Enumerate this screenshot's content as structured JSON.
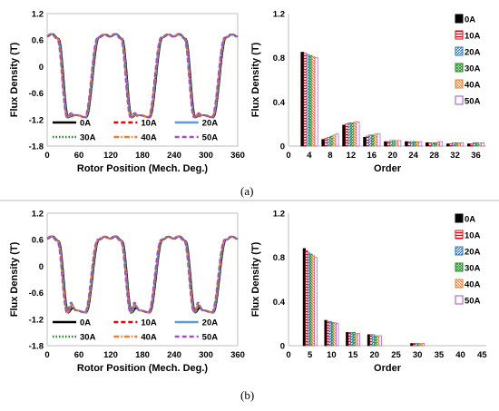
{
  "captions": {
    "a": "(a)",
    "b": "(b)"
  },
  "chart_data": [
    {
      "panel": "a",
      "type": "line",
      "xlabel": "Rotor Position (Mech. Deg.)",
      "ylabel": "Flux Density (T)",
      "xlim": [
        0,
        360
      ],
      "ylim": [
        -1.8,
        1.2
      ],
      "xticks": [
        "0",
        "60",
        "120",
        "180",
        "240",
        "300",
        "360"
      ],
      "yticks": [
        "-1.8",
        "-1.2",
        "-0.6",
        "0",
        "0.6",
        "1.2"
      ],
      "series": [
        {
          "name": "0A",
          "color": "#000000",
          "dash": "solid"
        },
        {
          "name": "10A",
          "color": "#e8000b",
          "dash": "dash"
        },
        {
          "name": "20A",
          "color": "#5b9bd5",
          "dash": "solid"
        },
        {
          "name": "30A",
          "color": "#1f8a1f",
          "dash": "dot"
        },
        {
          "name": "40A",
          "color": "#ed7d31",
          "dash": "dashdot"
        },
        {
          "name": "50A",
          "color": "#a64ec8",
          "dash": "dash"
        }
      ],
      "waveform": {
        "period_deg": 120,
        "phase_deg": 0,
        "plateau_high": 0.68,
        "valley_low": -1.15,
        "dip_values": {
          "0A": -1.1,
          "10A": -1.12,
          "20A": -1.1,
          "30A": -1.08,
          "40A": -1.06,
          "50A": -1.05
        }
      },
      "legend_position": "bottom"
    },
    {
      "panel": "a",
      "type": "bar",
      "xlabel": "Order",
      "ylabel": "Flux Density (T)",
      "xlim": [
        0,
        38
      ],
      "ylim": [
        0,
        1.2
      ],
      "xticks": [
        "0",
        "4",
        "8",
        "12",
        "16",
        "20",
        "24",
        "28",
        "32",
        "36"
      ],
      "yticks": [
        "0",
        "0.4",
        "0.8",
        "1.2"
      ],
      "orders": [
        4,
        8,
        12,
        16,
        20,
        24,
        28,
        32,
        36
      ],
      "series": [
        {
          "name": "0A",
          "color": "#000000",
          "pattern": "solid",
          "values": [
            0.85,
            0.06,
            0.19,
            0.08,
            0.04,
            0.04,
            0.03,
            0.02,
            0.02
          ]
        },
        {
          "name": "10A",
          "color": "#e8000b",
          "pattern": "hlines",
          "values": [
            0.84,
            0.07,
            0.2,
            0.09,
            0.04,
            0.04,
            0.03,
            0.02,
            0.02
          ]
        },
        {
          "name": "20A",
          "color": "#2e75b6",
          "pattern": "diag",
          "values": [
            0.83,
            0.08,
            0.21,
            0.1,
            0.05,
            0.04,
            0.03,
            0.03,
            0.03
          ]
        },
        {
          "name": "30A",
          "color": "#1f8a1f",
          "pattern": "cross",
          "values": [
            0.82,
            0.09,
            0.21,
            0.1,
            0.05,
            0.04,
            0.03,
            0.03,
            0.03
          ]
        },
        {
          "name": "40A",
          "color": "#ed7d31",
          "pattern": "diag2",
          "values": [
            0.81,
            0.1,
            0.22,
            0.11,
            0.05,
            0.04,
            0.04,
            0.03,
            0.03
          ]
        },
        {
          "name": "50A",
          "color": "#a64ec8",
          "pattern": "outline",
          "values": [
            0.8,
            0.11,
            0.22,
            0.11,
            0.05,
            0.04,
            0.04,
            0.03,
            0.03
          ]
        }
      ],
      "legend_position": "right"
    },
    {
      "panel": "b",
      "type": "line",
      "xlabel": "Rotor Position (Mech. Deg.)",
      "ylabel": "Flux Density (T)",
      "xlim": [
        0,
        360
      ],
      "ylim": [
        -1.8,
        1.2
      ],
      "xticks": [
        "0",
        "60",
        "120",
        "180",
        "240",
        "300",
        "360"
      ],
      "yticks": [
        "-1.8",
        "-1.2",
        "-0.6",
        "0",
        "0.6",
        "1.2"
      ],
      "series": [
        {
          "name": "0A",
          "color": "#000000",
          "dash": "solid"
        },
        {
          "name": "10A",
          "color": "#e8000b",
          "dash": "dash"
        },
        {
          "name": "20A",
          "color": "#5b9bd5",
          "dash": "solid"
        },
        {
          "name": "30A",
          "color": "#1f8a1f",
          "dash": "dot"
        },
        {
          "name": "40A",
          "color": "#ed7d31",
          "dash": "dashdot"
        },
        {
          "name": "50A",
          "color": "#a64ec8",
          "dash": "dash"
        }
      ],
      "waveform": {
        "period_deg": 120,
        "phase_deg": 0,
        "plateau_high": 0.62,
        "valley_low": -1.05,
        "dip_values": {
          "0A": -0.95,
          "10A": -0.92,
          "20A": -0.88,
          "30A": -0.9,
          "40A": -0.85,
          "50A": -0.82
        }
      },
      "legend_position": "bottom"
    },
    {
      "panel": "b",
      "type": "bar",
      "xlabel": "Order",
      "ylabel": "Flux Density (T)",
      "xlim": [
        0,
        46
      ],
      "ylim": [
        0,
        1.2
      ],
      "xticks": [
        "0",
        "5",
        "10",
        "15",
        "20",
        "25",
        "30",
        "35",
        "40",
        "45"
      ],
      "yticks": [
        "0",
        "0.4",
        "0.8",
        "1.2"
      ],
      "orders": [
        5,
        10,
        15,
        20,
        30
      ],
      "series": [
        {
          "name": "0A",
          "color": "#000000",
          "pattern": "solid",
          "values": [
            0.88,
            0.23,
            0.12,
            0.1,
            0.02
          ]
        },
        {
          "name": "10A",
          "color": "#e8000b",
          "pattern": "hlines",
          "values": [
            0.86,
            0.22,
            0.12,
            0.1,
            0.02
          ]
        },
        {
          "name": "20A",
          "color": "#2e75b6",
          "pattern": "diag",
          "values": [
            0.84,
            0.22,
            0.12,
            0.1,
            0.02
          ]
        },
        {
          "name": "30A",
          "color": "#1f8a1f",
          "pattern": "cross",
          "values": [
            0.83,
            0.21,
            0.12,
            0.09,
            0.02
          ]
        },
        {
          "name": "40A",
          "color": "#ed7d31",
          "pattern": "diag2",
          "values": [
            0.82,
            0.21,
            0.11,
            0.09,
            0.02
          ]
        },
        {
          "name": "50A",
          "color": "#a64ec8",
          "pattern": "outline",
          "values": [
            0.8,
            0.2,
            0.11,
            0.09,
            0.02
          ]
        }
      ],
      "legend_position": "right"
    }
  ]
}
